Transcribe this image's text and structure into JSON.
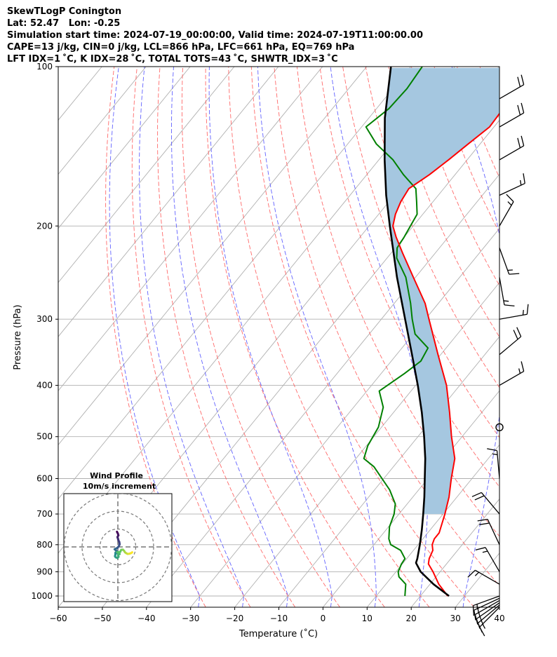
{
  "header": {
    "line1": "SkewTLogP Conington",
    "line2": "Lat: 52.47   Lon: -0.25",
    "line3": "Simulation start time: 2024-07-19_00:00:00, Valid time: 2024-07-19T11:00:00.00",
    "line4": "CAPE=13 j/kg, CIN=0 j/kg, LCL=866 hPa, LFC=661 hPa, EQ=769 hPa",
    "line5": "LFT IDX=1 ˚C, K IDX=28 ˚C, TOTAL TOTS=43 ˚C, SHWTR_IDX=3 ˚C"
  },
  "chart_data": [
    {
      "type": "line",
      "subtype": "skew-t log-p diagram",
      "xlabel": "Temperature (˚C)",
      "ylabel": "Pressure (hPa)",
      "xlim": [
        -60,
        40
      ],
      "ylim": [
        1050,
        100
      ],
      "y_scale": "log",
      "x_ticks": [
        "−60",
        "−50",
        "−40",
        "−30",
        "−20",
        "−10",
        "0",
        "10",
        "20",
        "30",
        "40"
      ],
      "x_tick_values": [
        -60,
        -50,
        -40,
        -30,
        -20,
        -10,
        0,
        10,
        20,
        30,
        40
      ],
      "y_ticks": [
        "100",
        "200",
        "300",
        "400",
        "500",
        "600",
        "700",
        "800",
        "900",
        "1000"
      ],
      "y_tick_values": [
        100,
        200,
        300,
        400,
        500,
        600,
        700,
        800,
        900,
        1000
      ],
      "grid": true,
      "cape_fill_color": "#a5c7e0",
      "series": [
        {
          "role": "temperature",
          "color": "#ff0000",
          "points": [
            [
              1000,
              26.2
            ],
            [
              950,
              22.0
            ],
            [
              900,
              18.4
            ],
            [
              870,
              15.9
            ],
            [
              850,
              15.1
            ],
            [
              820,
              14.4
            ],
            [
              800,
              13.2
            ],
            [
              780,
              12.6
            ],
            [
              760,
              12.6
            ],
            [
              700,
              10.4
            ],
            [
              650,
              8.2
            ],
            [
              600,
              5.3
            ],
            [
              550,
              2.4
            ],
            [
              500,
              -2.4
            ],
            [
              450,
              -7.3
            ],
            [
              400,
              -13.0
            ],
            [
              350,
              -20.6
            ],
            [
              300,
              -29.2
            ],
            [
              280,
              -33.0
            ],
            [
              250,
              -40.5
            ],
            [
              225,
              -47.4
            ],
            [
              210,
              -51.8
            ],
            [
              200,
              -54.6
            ],
            [
              190,
              -56.2
            ],
            [
              180,
              -57.3
            ],
            [
              170,
              -57.9
            ],
            [
              160,
              -55.8
            ],
            [
              150,
              -54.2
            ],
            [
              140,
              -52.7
            ],
            [
              130,
              -51.0
            ],
            [
              120,
              -51.3
            ],
            [
              110,
              -51.3
            ],
            [
              100,
              -52.2
            ]
          ]
        },
        {
          "role": "dewpoint",
          "color": "#008000",
          "points": [
            [
              1000,
              16.5
            ],
            [
              950,
              14.5
            ],
            [
              920,
              11.6
            ],
            [
              900,
              10.5
            ],
            [
              870,
              9.8
            ],
            [
              850,
              9.6
            ],
            [
              820,
              7.1
            ],
            [
              800,
              3.8
            ],
            [
              780,
              2.3
            ],
            [
              740,
              0.2
            ],
            [
              700,
              -1.1
            ],
            [
              670,
              -2.7
            ],
            [
              630,
              -6.6
            ],
            [
              570,
              -14.4
            ],
            [
              550,
              -18.2
            ],
            [
              520,
              -19.7
            ],
            [
              480,
              -20.7
            ],
            [
              440,
              -23.3
            ],
            [
              410,
              -27.2
            ],
            [
              380,
              -24.7
            ],
            [
              360,
              -23.3
            ],
            [
              340,
              -24.1
            ],
            [
              320,
              -29.6
            ],
            [
              300,
              -33.0
            ],
            [
              280,
              -36.3
            ],
            [
              250,
              -42.2
            ],
            [
              230,
              -47.8
            ],
            [
              220,
              -49.6
            ],
            [
              210,
              -50.0
            ],
            [
              190,
              -51.3
            ],
            [
              180,
              -53.7
            ],
            [
              170,
              -56.3
            ],
            [
              160,
              -61.7
            ],
            [
              150,
              -66.8
            ],
            [
              140,
              -73.5
            ],
            [
              130,
              -79.0
            ],
            [
              120,
              -77.2
            ],
            [
              110,
              -76.8
            ],
            [
              100,
              -77.4
            ]
          ]
        },
        {
          "role": "parcel profile",
          "color": "#000000",
          "points": [
            [
              1000,
              26.5
            ],
            [
              950,
              20.8
            ],
            [
              900,
              15.6
            ],
            [
              866,
              12.9
            ],
            [
              850,
              12.4
            ],
            [
              800,
              10.4
            ],
            [
              750,
              8.1
            ],
            [
              700,
              5.5
            ],
            [
              650,
              2.6
            ],
            [
              600,
              -0.7
            ],
            [
              550,
              -4.3
            ],
            [
              500,
              -8.6
            ],
            [
              450,
              -13.6
            ],
            [
              400,
              -19.5
            ],
            [
              350,
              -26.5
            ],
            [
              300,
              -34.6
            ],
            [
              250,
              -44.2
            ],
            [
              200,
              -55.3
            ],
            [
              175,
              -61.8
            ],
            [
              150,
              -68.7
            ],
            [
              125,
              -76.4
            ],
            [
              100,
              -84.5
            ]
          ]
        }
      ],
      "wind_barbs_kt": [
        {
          "p": 1050,
          "speed": 15,
          "dir": 225
        },
        {
          "p": 1040,
          "speed": 15,
          "dir": 230
        },
        {
          "p": 1030,
          "speed": 15,
          "dir": 235
        },
        {
          "p": 1020,
          "speed": 15,
          "dir": 240
        },
        {
          "p": 1010,
          "speed": 15,
          "dir": 245
        },
        {
          "p": 1000,
          "speed": 15,
          "dir": 250
        },
        {
          "p": 950,
          "speed": 15,
          "dir": 300
        },
        {
          "p": 900,
          "speed": 15,
          "dir": 330
        },
        {
          "p": 800,
          "speed": 20,
          "dir": 335
        },
        {
          "p": 700,
          "speed": 20,
          "dir": 320
        },
        {
          "p": 600,
          "speed": 15,
          "dir": 355
        },
        {
          "p": 480,
          "speed": 0,
          "dir": 0
        },
        {
          "p": 400,
          "speed": 15,
          "dir": 60
        },
        {
          "p": 350,
          "speed": 20,
          "dir": 50
        },
        {
          "p": 300,
          "speed": 15,
          "dir": 80
        },
        {
          "p": 250,
          "speed": 15,
          "dir": 170
        },
        {
          "p": 220,
          "speed": 15,
          "dir": 160
        },
        {
          "p": 200,
          "speed": 15,
          "dir": 30
        },
        {
          "p": 175,
          "speed": 15,
          "dir": 65
        },
        {
          "p": 150,
          "speed": 20,
          "dir": 60
        },
        {
          "p": 130,
          "speed": 20,
          "dir": 60
        },
        {
          "p": 115,
          "speed": 20,
          "dir": 60
        }
      ]
    },
    {
      "type": "scatter",
      "subtype": "hodograph",
      "title": "Wind Profile",
      "subtitle": "10m/s increment",
      "rings_ms": [
        10,
        20,
        30
      ],
      "colormap": [
        "#440154",
        "#3b528b",
        "#21918c",
        "#5ec962",
        "#fde725"
      ],
      "points": [
        [
          -0.5,
          -8.5
        ],
        [
          0.0,
          -7.5
        ],
        [
          0.3,
          -6.5
        ],
        [
          -0.2,
          -5.5
        ],
        [
          0.1,
          -4.5
        ],
        [
          0.4,
          -3.5
        ],
        [
          0.8,
          -2.8
        ],
        [
          1.0,
          -1.5
        ],
        [
          0.6,
          -0.5
        ],
        [
          -0.2,
          0.5
        ],
        [
          -1.2,
          1.0
        ],
        [
          -1.8,
          1.3
        ],
        [
          -0.5,
          2.5
        ],
        [
          -0.2,
          3.5
        ],
        [
          -1.3,
          3.2
        ],
        [
          -1.4,
          4.3
        ],
        [
          -1.6,
          5.2
        ],
        [
          -1.2,
          5.8
        ],
        [
          -0.2,
          6.2
        ],
        [
          0.4,
          5.5
        ],
        [
          0.1,
          4.5
        ],
        [
          1.0,
          4.0
        ],
        [
          -0.4,
          3.0
        ],
        [
          1.3,
          2.8
        ],
        [
          1.9,
          1.6
        ],
        [
          2.8,
          1.5
        ],
        [
          3.5,
          2.2
        ],
        [
          4.0,
          3.0
        ],
        [
          4.8,
          3.6
        ],
        [
          5.5,
          3.9
        ],
        [
          6.5,
          3.8
        ],
        [
          7.5,
          3.4
        ],
        [
          8.0,
          3.0
        ]
      ]
    }
  ]
}
